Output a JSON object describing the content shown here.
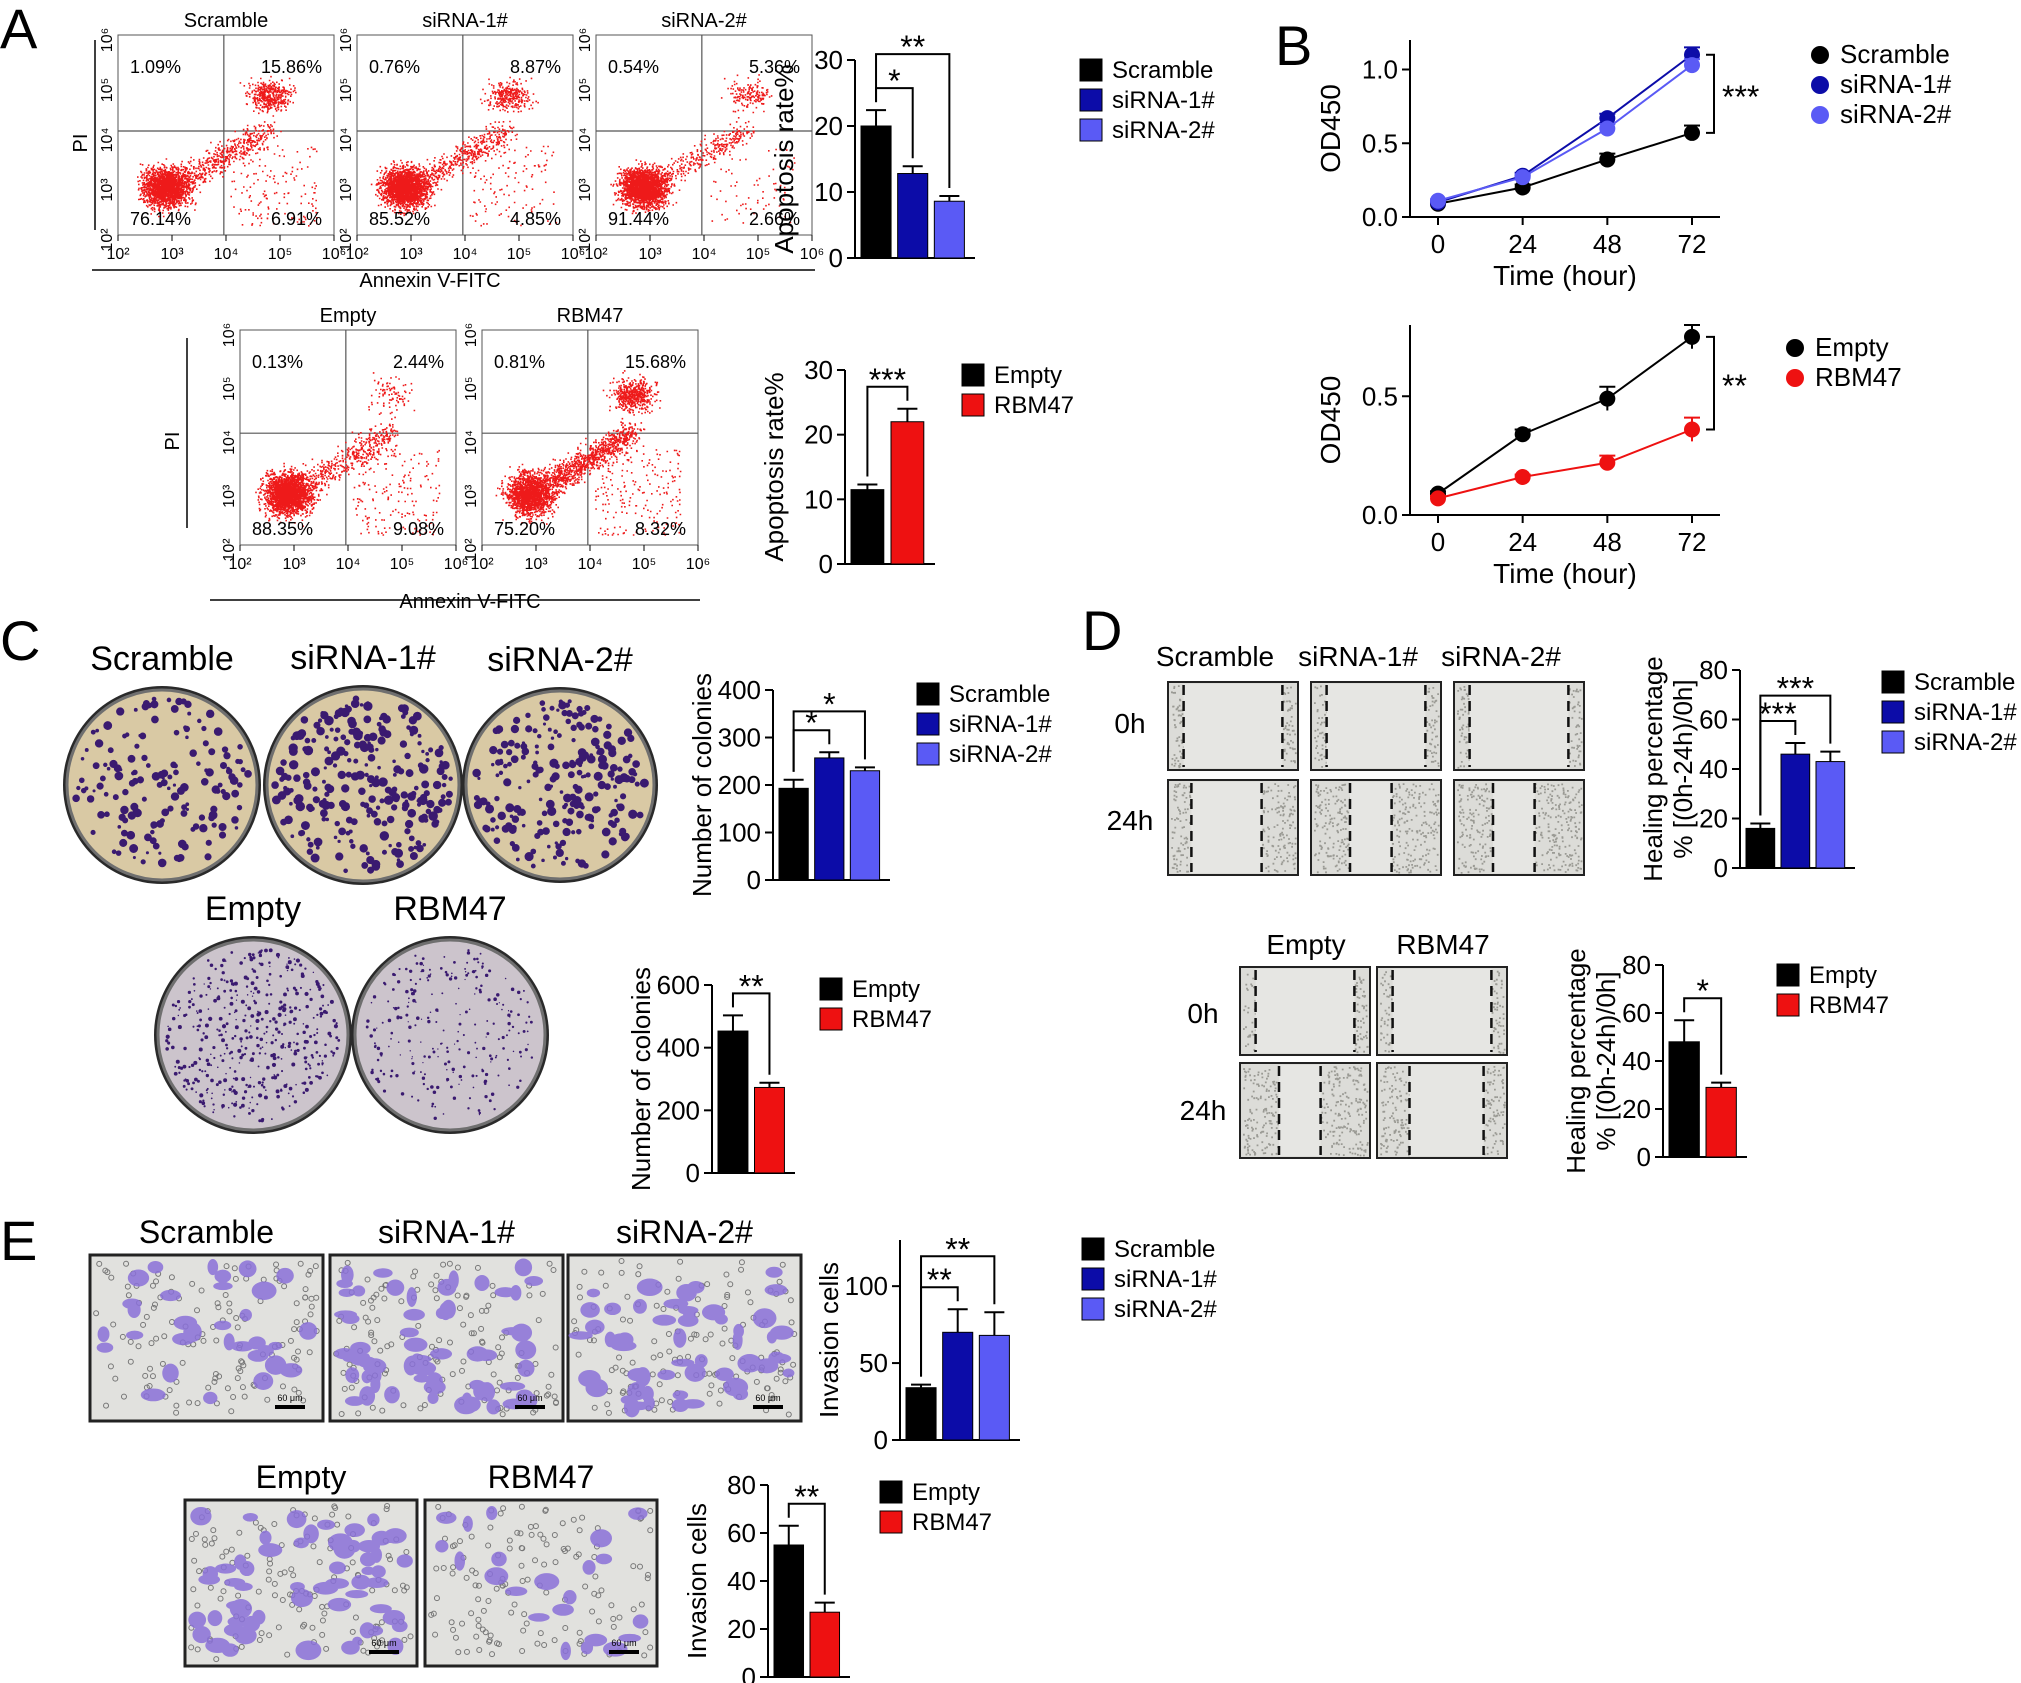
{
  "colors": {
    "black": "#000000",
    "blue": "#0c0ca8",
    "lightblue": "#5a5af5",
    "red": "#ee1111",
    "dots": "#ee1a1a",
    "plate": "#d9c9a4",
    "plate2": "#ccc4cc",
    "colony": "#3a1a70",
    "well": "#e1e1de",
    "cell": "#8a70d8"
  },
  "panel_labels": [
    "A",
    "B",
    "C",
    "D",
    "E"
  ],
  "flow": {
    "axis_x": "Annexin V-FITC",
    "axis_y": "PI",
    "ticks": [
      "10²",
      "10³",
      "10⁴",
      "10⁵",
      "10⁶"
    ],
    "plots_top": [
      {
        "title": "Scramble",
        "q": [
          "1.09%",
          "15.86%",
          "76.14%",
          "6.91%"
        ]
      },
      {
        "title": "siRNA-1#",
        "q": [
          "0.76%",
          "8.87%",
          "85.52%",
          "4.85%"
        ]
      },
      {
        "title": "siRNA-2#",
        "q": [
          "0.54%",
          "5.36%",
          "91.44%",
          "2.66%"
        ]
      }
    ],
    "plots_bottom": [
      {
        "title": "Empty",
        "q": [
          "0.13%",
          "2.44%",
          "88.35%",
          "9.08%"
        ]
      },
      {
        "title": "RBM47",
        "q": [
          "0.81%",
          "15.68%",
          "75.20%",
          "8.32%"
        ]
      }
    ]
  },
  "chart_data": [
    {
      "id": "A1",
      "type": "bar",
      "ylabel": "Apoptosis rate%",
      "ylim": [
        0,
        30
      ],
      "yticks": [
        0,
        10,
        20,
        30
      ],
      "categories": [
        "Scramble",
        "siRNA-1#",
        "siRNA-2#"
      ],
      "values": [
        20,
        12.8,
        8.6
      ],
      "errors": [
        2.4,
        1.1,
        0.8
      ],
      "colors": [
        "#000000",
        "#0c0ca8",
        "#5a5af5"
      ],
      "legend": [
        "Scramble",
        "siRNA-1#",
        "siRNA-2#"
      ],
      "sig": [
        {
          "pair": [
            0,
            1
          ],
          "label": "*"
        },
        {
          "pair": [
            0,
            2
          ],
          "label": "**"
        }
      ]
    },
    {
      "id": "A2",
      "type": "bar",
      "ylabel": "Apoptosis rate%",
      "ylim": [
        0,
        30
      ],
      "yticks": [
        0,
        10,
        20,
        30
      ],
      "categories": [
        "Empty",
        "RBM47"
      ],
      "values": [
        11.5,
        22
      ],
      "errors": [
        0.8,
        2
      ],
      "colors": [
        "#000000",
        "#ee1111"
      ],
      "legend": [
        "Empty",
        "RBM47"
      ],
      "sig": [
        {
          "pair": [
            0,
            1
          ],
          "label": "***"
        }
      ]
    },
    {
      "id": "B1",
      "type": "line",
      "xlabel": "Time (hour)",
      "ylabel": "OD450",
      "x": [
        0,
        24,
        48,
        72
      ],
      "ylim": [
        0,
        1.2
      ],
      "yticks": [
        "0.0",
        "0.5",
        "1.0"
      ],
      "series": [
        {
          "name": "Scramble",
          "values": [
            0.09,
            0.2,
            0.39,
            0.57
          ],
          "errors": [
            0.01,
            0.02,
            0.04,
            0.05
          ],
          "color": "#000000"
        },
        {
          "name": "siRNA-1#",
          "values": [
            0.1,
            0.28,
            0.67,
            1.1
          ],
          "errors": [
            0.01,
            0.02,
            0.03,
            0.05
          ],
          "color": "#0c0ca8"
        },
        {
          "name": "siRNA-2#",
          "values": [
            0.11,
            0.27,
            0.6,
            1.03
          ],
          "errors": [
            0.01,
            0.02,
            0.03,
            0.04
          ],
          "color": "#5a5af5"
        }
      ],
      "sig": "***"
    },
    {
      "id": "B2",
      "type": "line",
      "xlabel": "Time (hour)",
      "ylabel": "OD450",
      "x": [
        0,
        24,
        48,
        72
      ],
      "ylim": [
        0,
        0.8
      ],
      "yticks": [
        "0.0",
        "0.5"
      ],
      "series": [
        {
          "name": "Empty",
          "values": [
            0.09,
            0.34,
            0.49,
            0.75
          ],
          "errors": [
            0.01,
            0.02,
            0.05,
            0.05
          ],
          "color": "#000000"
        },
        {
          "name": "RBM47",
          "values": [
            0.07,
            0.16,
            0.22,
            0.36
          ],
          "errors": [
            0.01,
            0.01,
            0.03,
            0.05
          ],
          "color": "#ee1111"
        }
      ],
      "sig": "**"
    },
    {
      "id": "C1",
      "type": "bar",
      "ylabel": "Number of colonies",
      "ylim": [
        0,
        400
      ],
      "yticks": [
        0,
        100,
        200,
        300,
        400
      ],
      "categories": [
        "Scramble",
        "siRNA-1#",
        "siRNA-2#"
      ],
      "values": [
        193,
        257,
        230
      ],
      "errors": [
        18,
        12,
        7
      ],
      "colors": [
        "#000000",
        "#0c0ca8",
        "#5a5af5"
      ],
      "legend": [
        "Scramble",
        "siRNA-1#",
        "siRNA-2#"
      ],
      "sig": [
        {
          "pair": [
            0,
            1
          ],
          "label": "*"
        },
        {
          "pair": [
            0,
            2
          ],
          "label": "*"
        }
      ]
    },
    {
      "id": "C2",
      "type": "bar",
      "ylabel": "Number of colonies",
      "ylim": [
        0,
        600
      ],
      "yticks": [
        0,
        200,
        400,
        600
      ],
      "categories": [
        "Empty",
        "RBM47"
      ],
      "values": [
        453,
        273
      ],
      "errors": [
        50,
        15
      ],
      "colors": [
        "#000000",
        "#ee1111"
      ],
      "legend": [
        "Empty",
        "RBM47"
      ],
      "sig": [
        {
          "pair": [
            0,
            1
          ],
          "label": "**"
        }
      ]
    },
    {
      "id": "D1",
      "type": "bar",
      "ylabel": "Healing percentage\n% [(0h-24h)/0h]",
      "ylim": [
        0,
        80
      ],
      "yticks": [
        0,
        20,
        40,
        60,
        80
      ],
      "categories": [
        "Scramble",
        "siRNA-1#",
        "siRNA-2#"
      ],
      "values": [
        16,
        46,
        43
      ],
      "errors": [
        2,
        4.5,
        4
      ],
      "colors": [
        "#000000",
        "#0c0ca8",
        "#5a5af5"
      ],
      "legend": [
        "Scramble",
        "siRNA-1#",
        "siRNA-2#"
      ],
      "sig": [
        {
          "pair": [
            0,
            1
          ],
          "label": "***"
        },
        {
          "pair": [
            0,
            2
          ],
          "label": "***"
        }
      ]
    },
    {
      "id": "D2",
      "type": "bar",
      "ylabel": "Healing percentage\n% [(0h-24h)/0h]",
      "ylim": [
        0,
        80
      ],
      "yticks": [
        0,
        20,
        40,
        60,
        80
      ],
      "categories": [
        "Empty",
        "RBM47"
      ],
      "values": [
        48,
        29
      ],
      "errors": [
        9,
        2
      ],
      "colors": [
        "#000000",
        "#ee1111"
      ],
      "legend": [
        "Empty",
        "RBM47"
      ],
      "sig": [
        {
          "pair": [
            0,
            1
          ],
          "label": "*"
        }
      ]
    },
    {
      "id": "E1",
      "type": "bar",
      "ylabel": "Invasion cells",
      "ylim": [
        0,
        130
      ],
      "yticks": [
        0,
        50,
        100
      ],
      "categories": [
        "Scramble",
        "siRNA-1#",
        "siRNA-2#"
      ],
      "values": [
        34,
        70,
        68
      ],
      "errors": [
        2,
        15,
        15
      ],
      "colors": [
        "#000000",
        "#0c0ca8",
        "#5a5af5"
      ],
      "legend": [
        "Scramble",
        "siRNA-1#",
        "siRNA-2#"
      ],
      "sig": [
        {
          "pair": [
            0,
            1
          ],
          "label": "**"
        },
        {
          "pair": [
            0,
            2
          ],
          "label": "**"
        }
      ]
    },
    {
      "id": "E2",
      "type": "bar",
      "ylabel": "Invasion cells",
      "ylim": [
        0,
        80
      ],
      "yticks": [
        0,
        20,
        40,
        60,
        80
      ],
      "categories": [
        "Empty",
        "RBM47"
      ],
      "values": [
        55,
        27
      ],
      "errors": [
        8,
        4
      ],
      "colors": [
        "#000000",
        "#ee1111"
      ],
      "legend": [
        "Empty",
        "RBM47"
      ],
      "sig": [
        {
          "pair": [
            0,
            1
          ],
          "label": "**"
        }
      ]
    }
  ],
  "colony": {
    "top": [
      "Scramble",
      "siRNA-1#",
      "siRNA-2#"
    ],
    "bottom": [
      "Empty",
      "RBM47"
    ]
  },
  "wound": {
    "top": [
      "Scramble",
      "siRNA-1#",
      "siRNA-2#"
    ],
    "bottom": [
      "Empty",
      "RBM47"
    ],
    "rows": [
      "0h",
      "24h"
    ]
  },
  "invasion": {
    "top": [
      "Scramble",
      "siRNA-1#",
      "siRNA-2#"
    ],
    "bottom": [
      "Empty",
      "RBM47"
    ],
    "scale": "60 μm"
  }
}
